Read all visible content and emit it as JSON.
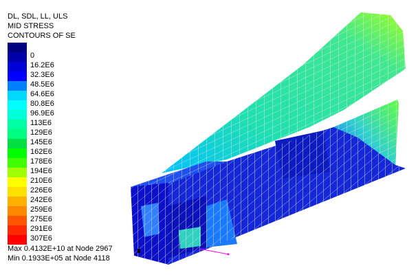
{
  "header": {
    "line1": "DL, SDL, LL, ULS",
    "line2": "MID STRESS",
    "line3": "CONTOURS OF SE"
  },
  "legend": {
    "colors": [
      "#000080",
      "#0000a8",
      "#0000d8",
      "#0000ff",
      "#0080ff",
      "#00d8ff",
      "#00ffff",
      "#00ffd8",
      "#00ffa0",
      "#00ff80",
      "#00e040",
      "#00ff00",
      "#40ff00",
      "#a0ff00",
      "#ffff00",
      "#ffe000",
      "#ffb000",
      "#ff8800",
      "#ff5500",
      "#ff2800",
      "#ff0000"
    ],
    "labels": [
      "0",
      "16.2E6",
      "32.3E6",
      "48.5E6",
      "64.6E6",
      "80.8E6",
      "96.9E6",
      "113E6",
      "129E6",
      "145E6",
      "162E6",
      "178E6",
      "194E6",
      "210E6",
      "226E6",
      "242E6",
      "259E6",
      "275E6",
      "291E6",
      "307E6"
    ]
  },
  "footer": {
    "max": "Max 0.4132E+10 at Node 2967",
    "min": "Min 0.1933E+05 at Node 4118"
  }
}
